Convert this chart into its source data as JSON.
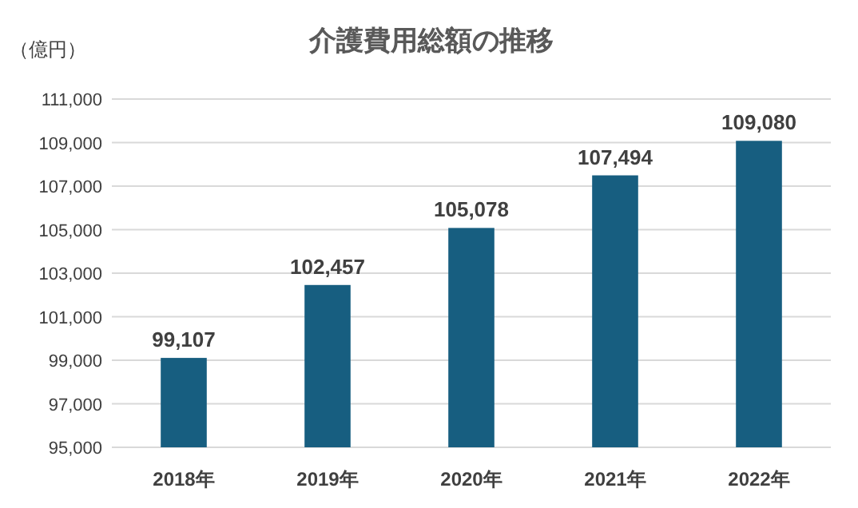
{
  "chart_data": {
    "type": "bar",
    "title": "介護費用総額の推移",
    "ylabel": "（億円）",
    "categories": [
      "2018年",
      "2019年",
      "2020年",
      "2021年",
      "2022年"
    ],
    "values": [
      99107,
      102457,
      105078,
      107494,
      109080
    ],
    "value_labels": [
      "99,107",
      "102,457",
      "105,078",
      "107,494",
      "109,080"
    ],
    "color": "#175e80",
    "ylim": [
      95000,
      111000
    ],
    "yticks": [
      {
        "value": 95000,
        "label": "95,000"
      },
      {
        "value": 97000,
        "label": "97,000"
      },
      {
        "value": 99000,
        "label": "99,000"
      },
      {
        "value": 101000,
        "label": "101,000"
      },
      {
        "value": 103000,
        "label": "103,000"
      },
      {
        "value": 105000,
        "label": "105,000"
      },
      {
        "value": 107000,
        "label": "107,000"
      },
      {
        "value": 109000,
        "label": "109,000"
      },
      {
        "value": 111000,
        "label": "111,000"
      }
    ],
    "grid": "y"
  }
}
